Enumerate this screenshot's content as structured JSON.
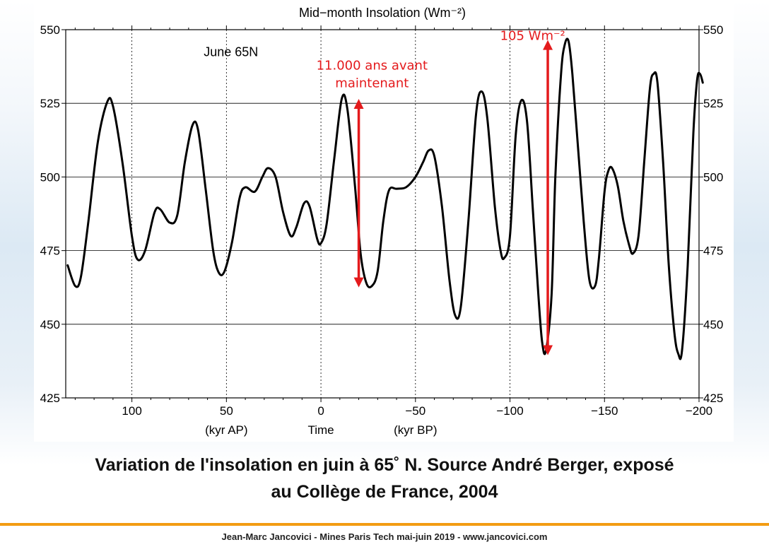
{
  "chart_data": {
    "type": "line",
    "title": "Mid−month Insolation (Wm⁻²)",
    "subtitle": "June 65N",
    "ylim": [
      425,
      550
    ],
    "xlim": [
      135,
      -200
    ],
    "y_ticks": [
      "425",
      "450",
      "475",
      "500",
      "525",
      "550"
    ],
    "x_ticks": [
      {
        "value": 100,
        "label": "100"
      },
      {
        "value": 50,
        "label": "50"
      },
      {
        "value": 0,
        "label": "0"
      },
      {
        "value": -50,
        "label": "−50"
      },
      {
        "value": -100,
        "label": "−100"
      },
      {
        "value": -150,
        "label": "−150"
      },
      {
        "value": -200,
        "label": "−200"
      }
    ],
    "x_sub_labels": [
      {
        "value": 50,
        "label": "(kyr AP)"
      },
      {
        "value": 0,
        "label": "Time"
      },
      {
        "value": -50,
        "label": "(kyr BP)"
      }
    ],
    "grid": {
      "horizontal": "solid",
      "vertical": "dotted"
    },
    "line_color": "#000000",
    "series": [
      {
        "points": [
          [
            134,
            470
          ],
          [
            130,
            463
          ],
          [
            127,
            466
          ],
          [
            123,
            485
          ],
          [
            118,
            512
          ],
          [
            113,
            525.5
          ],
          [
            110,
            524
          ],
          [
            105,
            505
          ],
          [
            100,
            480
          ],
          [
            97,
            472
          ],
          [
            93,
            475
          ],
          [
            88,
            488
          ],
          [
            85,
            489
          ],
          [
            80,
            484.5
          ],
          [
            76,
            487
          ],
          [
            72,
            505
          ],
          [
            68,
            517.5
          ],
          [
            65,
            516
          ],
          [
            61,
            496
          ],
          [
            57,
            475
          ],
          [
            54,
            467.5
          ],
          [
            51,
            468
          ],
          [
            47,
            478
          ],
          [
            43,
            493
          ],
          [
            40,
            496.5
          ],
          [
            35,
            495
          ],
          [
            31,
            500
          ],
          [
            28,
            503
          ],
          [
            24,
            500
          ],
          [
            20,
            488
          ],
          [
            16,
            480
          ],
          [
            13,
            483
          ],
          [
            9,
            491
          ],
          [
            6,
            490
          ],
          [
            2,
            479
          ],
          [
            0,
            477.5
          ],
          [
            -3,
            484
          ],
          [
            -7,
            506
          ],
          [
            -11,
            526.5
          ],
          [
            -14,
            523
          ],
          [
            -18,
            497
          ],
          [
            -21,
            474
          ],
          [
            -24,
            464
          ],
          [
            -27,
            463
          ],
          [
            -30,
            468
          ],
          [
            -33,
            485
          ],
          [
            -36,
            495.5
          ],
          [
            -40,
            496
          ],
          [
            -45,
            496.5
          ],
          [
            -50,
            500
          ],
          [
            -54,
            505
          ],
          [
            -57,
            509
          ],
          [
            -60,
            507
          ],
          [
            -64,
            490
          ],
          [
            -68,
            465
          ],
          [
            -71,
            453
          ],
          [
            -74,
            456
          ],
          [
            -78,
            485
          ],
          [
            -82,
            521
          ],
          [
            -85,
            529
          ],
          [
            -88,
            520
          ],
          [
            -92,
            490
          ],
          [
            -95,
            475
          ],
          [
            -97,
            472.5
          ],
          [
            -100,
            480
          ],
          [
            -103,
            514
          ],
          [
            -106,
            526
          ],
          [
            -109,
            519
          ],
          [
            -112,
            490
          ],
          [
            -115,
            460
          ],
          [
            -117,
            444
          ],
          [
            -119,
            441
          ],
          [
            -122,
            460
          ],
          [
            -124,
            500
          ],
          [
            -127,
            535
          ],
          [
            -129,
            545
          ],
          [
            -131,
            546
          ],
          [
            -133,
            535
          ],
          [
            -136,
            510
          ],
          [
            -139,
            485
          ],
          [
            -142,
            465
          ],
          [
            -145,
            463
          ],
          [
            -147,
            472
          ],
          [
            -150,
            495
          ],
          [
            -152,
            502
          ],
          [
            -154,
            503
          ],
          [
            -157,
            497
          ],
          [
            -160,
            485
          ],
          [
            -163,
            477
          ],
          [
            -165,
            474
          ],
          [
            -168,
            480
          ],
          [
            -171,
            505
          ],
          [
            -174,
            530
          ],
          [
            -176,
            535
          ],
          [
            -178,
            532
          ],
          [
            -181,
            505
          ],
          [
            -184,
            470
          ],
          [
            -187,
            447
          ],
          [
            -189,
            440
          ],
          [
            -191,
            441
          ],
          [
            -194,
            470
          ],
          [
            -197,
            515
          ],
          [
            -199,
            533
          ],
          [
            -200.5,
            535
          ],
          [
            -202,
            532
          ]
        ]
      }
    ],
    "annotations": [
      {
        "type": "double-arrow",
        "x": -20,
        "y_from": 526,
        "y_to": 463,
        "color": "#e41a1c"
      },
      {
        "type": "double-arrow",
        "x": -120,
        "y_from": 546,
        "y_to": 440,
        "color": "#e41a1c"
      },
      {
        "type": "text",
        "lines": [
          "11.000 ans avant",
          "maintenant"
        ],
        "color": "#e41a1c"
      },
      {
        "type": "text",
        "lines": [
          "105 Wm⁻²"
        ],
        "color": "#e41a1c"
      }
    ]
  },
  "caption": {
    "line1": "Variation de l'insolation en juin à 65˚ N. Source André Berger, exposé",
    "line2": "au Collège de France, 2004"
  },
  "footer": "Jean-Marc Jancovici - Mines Paris Tech mai-juin 2019 - www.jancovici.com",
  "colors": {
    "accent_rule": "#f39c12",
    "annotation": "#e41a1c"
  }
}
